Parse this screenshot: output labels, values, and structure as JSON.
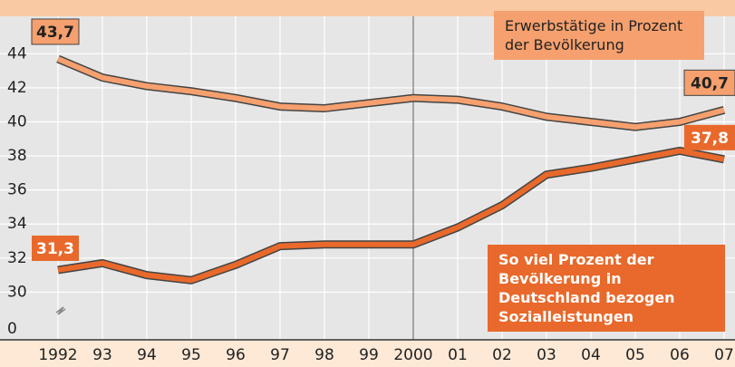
{
  "chart_data": {
    "type": "line",
    "categories": [
      "1992",
      "93",
      "94",
      "95",
      "96",
      "97",
      "98",
      "99",
      "2000",
      "01",
      "02",
      "03",
      "04",
      "05",
      "06",
      "07"
    ],
    "series": [
      {
        "name": "Erwerbstätige in Prozent der Bevölkerung",
        "color": "#f5a06e",
        "values": [
          43.7,
          42.6,
          42.1,
          41.8,
          41.4,
          40.9,
          40.8,
          41.1,
          41.4,
          41.3,
          40.9,
          40.3,
          40.0,
          39.7,
          40.0,
          40.7
        ],
        "value_labels": [
          "43,7",
          null,
          null,
          null,
          null,
          null,
          null,
          null,
          null,
          null,
          null,
          null,
          null,
          null,
          null,
          "40,7"
        ]
      },
      {
        "name": "So viel Prozent der Bevölkerung in Deutschland bezogen Sozialleistungen",
        "color": "#e8692b",
        "values": [
          31.3,
          31.7,
          31.0,
          30.7,
          31.6,
          32.7,
          32.8,
          32.8,
          32.8,
          33.8,
          35.1,
          36.9,
          37.3,
          37.8,
          38.3,
          37.8
        ],
        "value_labels": [
          "31,3",
          null,
          null,
          null,
          null,
          null,
          null,
          null,
          null,
          null,
          null,
          null,
          null,
          null,
          null,
          "37,8"
        ]
      }
    ],
    "ylim": [
      27.2,
      46.2
    ],
    "yticks": [
      0,
      30,
      32,
      34,
      36,
      38,
      40,
      42,
      44
    ],
    "axis_break": true,
    "grid": true
  }
}
